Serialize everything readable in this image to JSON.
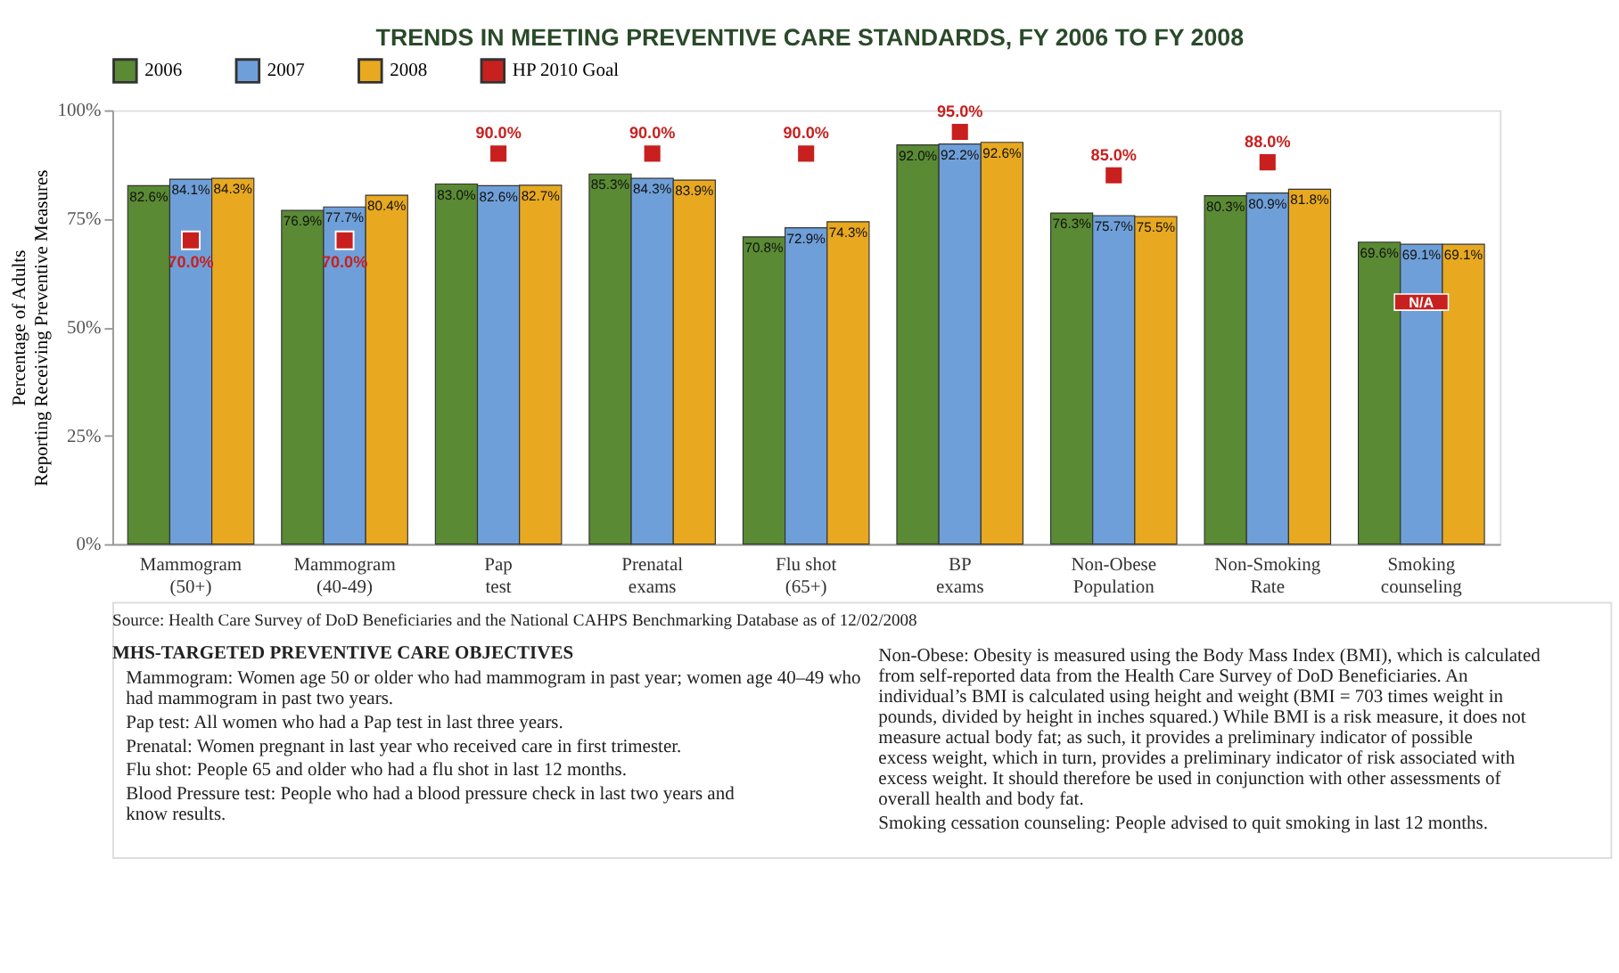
{
  "chart_data": {
    "type": "bar",
    "title": "TRENDS IN MEETING PREVENTIVE CARE STANDARDS, FY 2006 TO FY 2008",
    "ylabel": "Percentage of Adults\nReporting Receiving Preventive Measures",
    "categories": [
      "Mammogram\n(50+)",
      "Mammogram\n(40-49)",
      "Pap\ntest",
      "Prenatal\nexams",
      "Flu shot\n(65+)",
      "BP\nexams",
      "Non-Obese\nPopulation",
      "Non-Smoking\nRate",
      "Smoking\ncounseling"
    ],
    "series": [
      {
        "name": "2006",
        "color": "#5a8a34",
        "values": [
          82.6,
          76.9,
          83.0,
          85.3,
          70.8,
          92.0,
          76.3,
          80.3,
          69.6
        ],
        "value_labels": [
          "82.6%",
          "76.9%",
          "83.0%",
          "85.3%",
          "70.8%",
          "92.0%",
          "76.3%",
          "80.3%",
          "69.6%"
        ]
      },
      {
        "name": "2007",
        "color": "#6f9fd8",
        "values": [
          84.1,
          77.7,
          82.6,
          84.3,
          72.9,
          92.2,
          75.7,
          80.9,
          69.1
        ],
        "value_labels": [
          "84.1%",
          "77.7%",
          "82.6%",
          "84.3%",
          "72.9%",
          "92.2%",
          "75.7%",
          "80.9%",
          "69.1%"
        ]
      },
      {
        "name": "2008",
        "color": "#e8a920",
        "values": [
          84.3,
          80.4,
          82.7,
          83.9,
          74.3,
          92.6,
          75.5,
          81.8,
          69.1
        ],
        "value_labels": [
          "84.3%",
          "80.4%",
          "82.7%",
          "83.9%",
          "74.3%",
          "92.6%",
          "75.5%",
          "81.8%",
          "69.1%"
        ]
      },
      {
        "name": "HP 2010 Goal",
        "type": "scatter",
        "marker": "square",
        "color": "#c8201e",
        "values": [
          70.0,
          70.0,
          90.0,
          90.0,
          90.0,
          95.0,
          85.0,
          88.0,
          null
        ],
        "value_labels": [
          "70.0%",
          "70.0%",
          "90.0%",
          "90.0%",
          "90.0%",
          "95.0%",
          "85.0%",
          "88.0%",
          "N/A"
        ]
      }
    ],
    "ylim": [
      0,
      100
    ],
    "yticks": [
      {
        "value": 0,
        "label": "0%"
      },
      {
        "value": 25,
        "label": "25%"
      },
      {
        "value": 50,
        "label": "50%"
      },
      {
        "value": 75,
        "label": "75%"
      },
      {
        "value": 100,
        "label": "100%"
      }
    ],
    "grid": false,
    "legend": "top left",
    "annotations": [
      "Source: Health Care Survey of DoD Beneficiaries and the National CAHPS Benchmarking Database as of 12/02/2008",
      "MHS-TARGETED PREVENTIVE CARE OBJECTIVES",
      "Mammogram: Women age 50 or older who had mammogram in past year; women age 40–49 who had mammogram in past two years.",
      "Pap test: All women who had a Pap test in last three years.",
      "Prenatal: Women pregnant in last year who received care in first trimester.",
      "Flu shot: People 65 and older who had a flu shot in last 12 months.",
      "Blood Pressure test: People who had a blood pressure check in last two years and know results.",
      "Non-Obese: Obesity is measured using the Body Mass Index (BMI), which is calculated from self-reported data from the Health Care Survey of DoD Beneficiaries. An individual’s BMI is calculated using height and weight (BMI = 703 times weight in pounds, divided by height in inches squared.) While BMI is a risk measure, it does not measure actual body fat; as such, it provides a preliminary indicator of possible excess weight, which in turn, provides a preliminary indicator of risk associated with excess weight. It should therefore be used in conjunction with other assessments of overall health and body fat.",
      "Smoking cessation counseling: People advised to quit smoking in last 12 months."
    ]
  }
}
